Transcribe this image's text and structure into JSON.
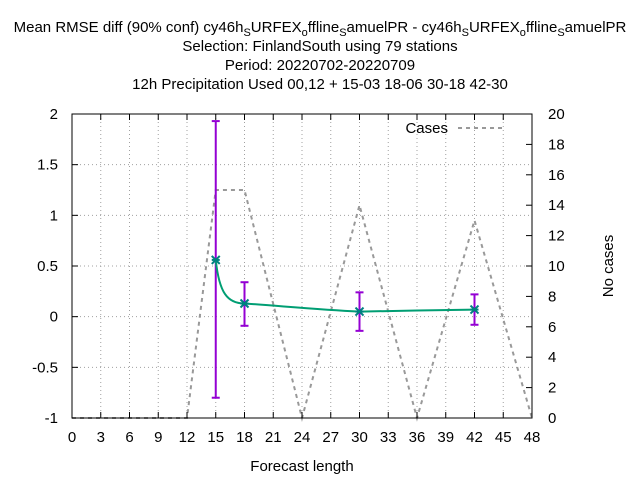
{
  "chart_data": {
    "type": "line",
    "title_lines": [
      {
        "parts": [
          {
            "t": "Mean RMSE diff (90% conf) cy46h"
          },
          {
            "t": "S",
            "sub": true
          },
          {
            "t": "URFEX"
          },
          {
            "t": "o",
            "sub": true
          },
          {
            "t": "ffline"
          },
          {
            "t": "S",
            "sub": true
          },
          {
            "t": "amuelPR - cy46h"
          },
          {
            "t": "S",
            "sub": true
          },
          {
            "t": "URFEX"
          },
          {
            "t": "o",
            "sub": true
          },
          {
            "t": "ffline"
          },
          {
            "t": "S",
            "sub": true
          },
          {
            "t": "amuelPR"
          }
        ]
      },
      {
        "parts": [
          {
            "t": "Selection: FinlandSouth using    79 stations"
          }
        ]
      },
      {
        "parts": [
          {
            "t": "Period: 20220702-20220709"
          }
        ]
      },
      {
        "parts": [
          {
            "t": "12h Precipitation   Used  00,12  + 15-03 18-06 30-18 42-30"
          }
        ]
      }
    ],
    "xlabel": "Forecast length",
    "ylabel": "",
    "y2label": "No cases",
    "xlim": [
      0,
      48
    ],
    "ylim": [
      -1,
      2
    ],
    "y2lim": [
      0,
      20
    ],
    "xticks": [
      0,
      3,
      6,
      9,
      12,
      15,
      18,
      21,
      24,
      27,
      30,
      33,
      36,
      39,
      42,
      45,
      48
    ],
    "yticks": [
      -1,
      -0.5,
      0,
      0.5,
      1,
      1.5,
      2
    ],
    "yticklabels": [
      "-1",
      "-0.5",
      "0",
      "0.5",
      "1",
      "1.5",
      "2"
    ],
    "y2ticks": [
      0,
      2,
      4,
      6,
      8,
      10,
      12,
      14,
      16,
      18,
      20
    ],
    "grid": true,
    "legend_position": "top-right",
    "series": [
      {
        "name": "",
        "color": "#009e73",
        "marker_color": "#008080",
        "x": [
          15,
          18,
          30,
          42
        ],
        "y": [
          0.56,
          0.13,
          0.05,
          0.07
        ],
        "smooth": true
      },
      {
        "name": "Cases",
        "axis": "y2",
        "color": "#999999",
        "dashed": true,
        "x": [
          0,
          12,
          15,
          18,
          24,
          30,
          36,
          42,
          48
        ],
        "y": [
          0,
          0,
          15,
          15,
          0,
          14,
          0,
          13,
          0
        ]
      }
    ],
    "error_bars": {
      "color": "#9400d3",
      "x": [
        15,
        18,
        30,
        42
      ],
      "low": [
        -0.8,
        -0.09,
        -0.14,
        -0.08
      ],
      "high": [
        1.93,
        0.34,
        0.24,
        0.22
      ]
    }
  }
}
